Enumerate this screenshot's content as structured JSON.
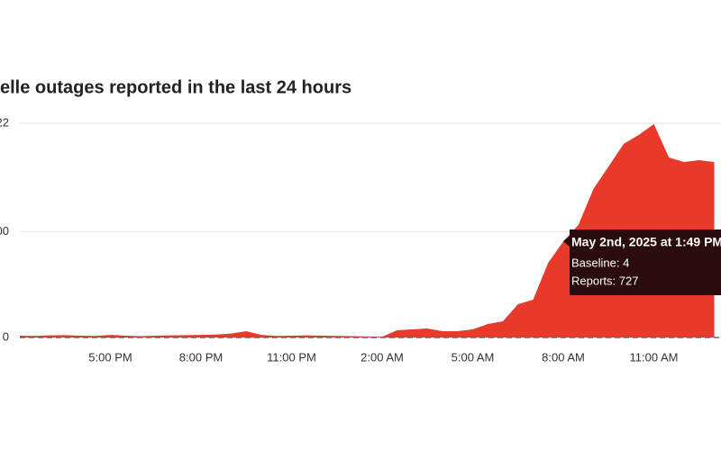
{
  "chart_data": {
    "type": "area",
    "title": "elle outages reported in the last 24 hours",
    "color": "#e8392a",
    "categories": [
      null,
      null,
      null,
      null,
      null,
      null,
      "5:00 PM",
      null,
      null,
      null,
      null,
      null,
      "8:00 PM",
      null,
      null,
      null,
      null,
      null,
      "11:00 PM",
      null,
      null,
      null,
      null,
      null,
      "2:00 AM",
      null,
      null,
      null,
      null,
      null,
      "5:00 AM",
      null,
      null,
      null,
      null,
      null,
      "8:00 AM",
      null,
      null,
      null,
      null,
      null,
      "11:00 AM",
      null,
      null,
      null,
      null
    ],
    "values": [
      14,
      12,
      16,
      18,
      14,
      12,
      20,
      14,
      10,
      14,
      16,
      18,
      20,
      22,
      30,
      48,
      20,
      12,
      14,
      16,
      14,
      12,
      10,
      8,
      5,
      55,
      61,
      68,
      48,
      48,
      61,
      102,
      123,
      252,
      286,
      566,
      727,
      852,
      1125,
      1295,
      1466,
      1534,
      1616,
      1363,
      1329,
      1343,
      1329
    ],
    "ylim": [
      0,
      1622
    ],
    "yticks": [
      0,
      {
        "value": 800,
        "label": "00"
      },
      {
        "value": 1622,
        "label": "22"
      }
    ],
    "grid": true,
    "tooltip": {
      "title": "May 2nd, 2025 at 1:49 PM",
      "lines": [
        "Baseline: 4",
        "Reports: 727"
      ]
    }
  }
}
